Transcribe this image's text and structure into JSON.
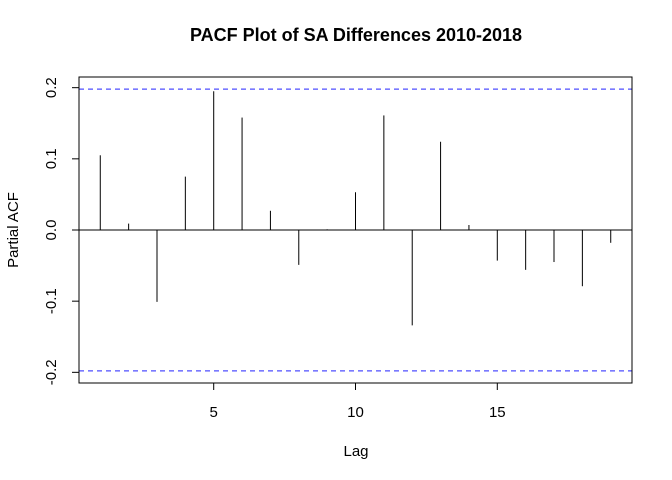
{
  "chart_data": {
    "type": "bar",
    "title": "PACF Plot of SA Differences 2010-2018",
    "xlabel": "Lag",
    "ylabel": "Partial ACF",
    "xlim": [
      0.25,
      19.75
    ],
    "ylim": [
      -0.215,
      0.215
    ],
    "x_ticks": [
      5,
      10,
      15
    ],
    "x_tick_labels": [
      "5",
      "10",
      "15"
    ],
    "y_ticks": [
      -0.2,
      -0.1,
      0.0,
      0.1,
      0.2
    ],
    "y_tick_labels": [
      "-0.2",
      "-0.1",
      "0.0",
      "0.1",
      "0.2"
    ],
    "x": [
      1,
      2,
      3,
      4,
      5,
      6,
      7,
      8,
      9,
      10,
      11,
      12,
      13,
      14,
      15,
      16,
      17,
      18,
      19
    ],
    "values": [
      0.105,
      0.009,
      -0.101,
      0.075,
      0.195,
      0.158,
      0.027,
      -0.049,
      0.001,
      0.053,
      0.161,
      -0.134,
      0.124,
      0.007,
      -0.043,
      -0.056,
      -0.045,
      -0.079,
      -0.018
    ],
    "confidence_bound": 0.198,
    "bound_color": "#4f4fff",
    "bar_color": "#000000",
    "grid": false
  }
}
